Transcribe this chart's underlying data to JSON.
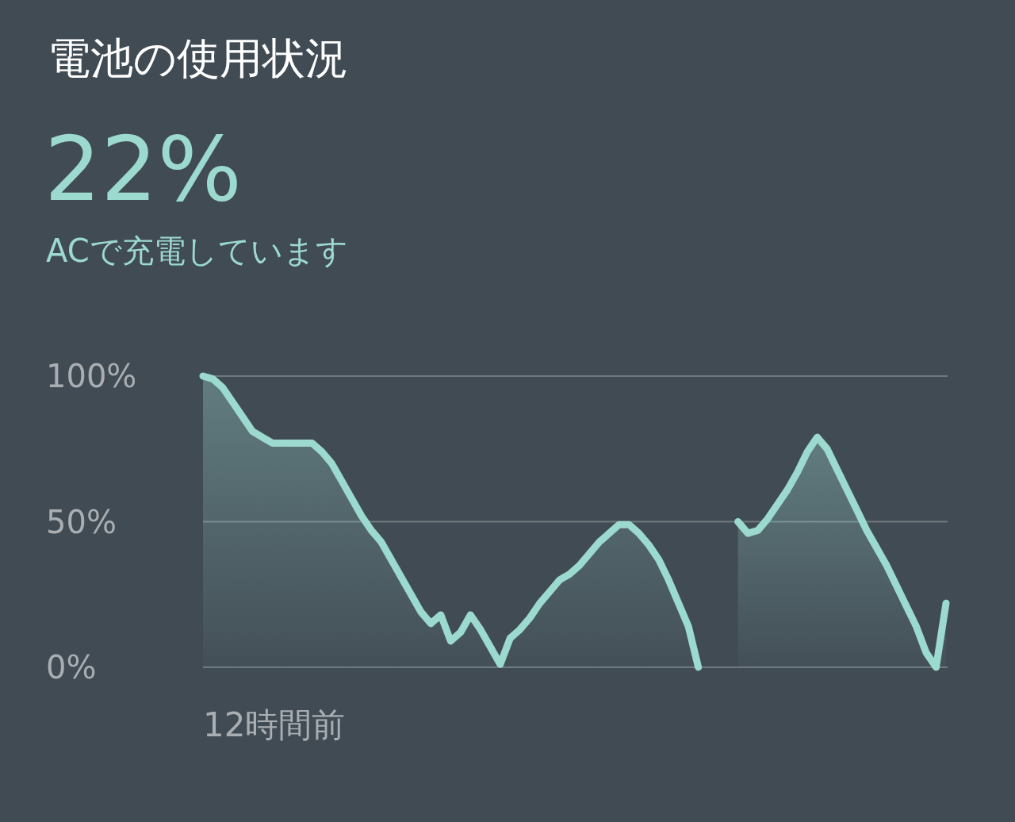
{
  "chart_data": {
    "type": "area",
    "title": "電池の使用状況",
    "subtitle": "ACで充電しています",
    "annotations": [
      "22%",
      "12時間前"
    ],
    "categories": [
      null,
      null,
      null,
      null,
      null,
      null,
      null,
      null,
      null,
      null,
      null,
      null,
      null,
      null,
      null,
      null,
      null,
      null,
      null,
      null,
      null,
      null,
      null,
      null,
      null,
      null,
      null,
      null,
      null,
      null,
      null,
      null,
      null,
      null,
      null,
      null,
      null,
      null,
      null,
      null,
      null,
      null,
      null,
      null,
      null,
      null,
      null,
      null,
      null,
      null,
      null,
      null,
      null,
      null,
      null,
      null,
      null,
      null,
      null,
      null,
      null,
      null,
      null,
      null,
      null,
      null,
      null,
      null,
      null,
      null,
      null,
      null,
      null,
      null,
      null,
      null
    ],
    "series": [
      {
        "color": "#9cd9cf",
        "values": [
          100,
          99,
          96,
          91,
          86,
          81,
          79,
          77,
          77,
          77,
          77,
          77,
          74,
          70,
          64,
          58,
          52,
          47,
          43,
          37,
          31,
          25,
          19,
          15,
          18,
          9,
          12,
          18,
          13,
          7,
          1,
          10,
          13,
          17,
          22,
          26,
          30,
          32,
          35,
          39,
          43,
          46,
          49,
          49,
          46,
          42,
          37,
          30,
          22,
          14,
          0,
          null,
          null,
          null,
          null,
          null,
          null,
          null,
          null,
          null,
          null,
          null,
          null,
          null,
          null,
          null,
          null,
          null,
          null,
          null,
          null,
          null,
          null,
          null,
          null,
          null
        ]
      },
      {
        "color": "#9cd9cf",
        "values": [
          null,
          null,
          null,
          null,
          null,
          null,
          null,
          null,
          null,
          null,
          null,
          null,
          null,
          null,
          null,
          null,
          null,
          null,
          null,
          null,
          null,
          null,
          null,
          null,
          null,
          null,
          null,
          null,
          null,
          null,
          null,
          null,
          null,
          null,
          null,
          null,
          null,
          null,
          null,
          null,
          null,
          null,
          null,
          null,
          null,
          null,
          null,
          null,
          null,
          null,
          null,
          null,
          null,
          null,
          50,
          46,
          47,
          51,
          56,
          61,
          67,
          74,
          79,
          75,
          68,
          61,
          54,
          47,
          41,
          35,
          28,
          21,
          14,
          5,
          0,
          22
        ]
      }
    ],
    "ylim": [
      0,
      100
    ],
    "yticks": [
      {
        "value": 0,
        "label": "0%"
      },
      {
        "value": 50,
        "label": "50%"
      },
      {
        "value": 100,
        "label": "100%"
      }
    ],
    "grid": "y"
  }
}
